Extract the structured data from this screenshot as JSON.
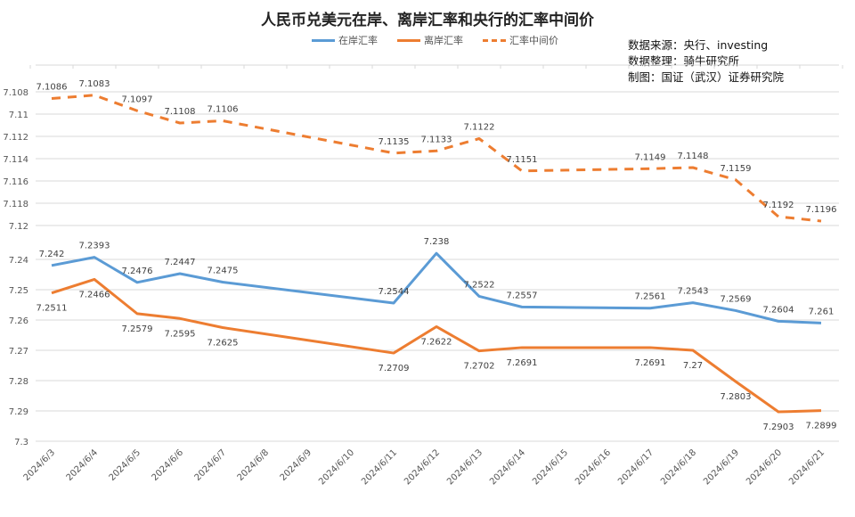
{
  "chart_data": {
    "type": "line",
    "title": "人民币兑美元在岸、离岸汇率和央行的汇率中间价",
    "notes": [
      "数据来源：央行、investing",
      "数据整理：骑牛研究所",
      "制图：国证（武汉）证券研究院"
    ],
    "categories": [
      "2024/6/3",
      "2024/6/4",
      "2024/6/5",
      "2024/6/6",
      "2024/6/7",
      "2024/6/8",
      "2024/6/9",
      "2024/6/10",
      "2024/6/11",
      "2024/6/12",
      "2024/6/13",
      "2024/6/14",
      "2024/6/15",
      "2024/6/16",
      "2024/6/17",
      "2024/6/18",
      "2024/6/19",
      "2024/6/20",
      "2024/6/21"
    ],
    "axis_upper": {
      "ticks": [
        "7.108",
        "7.11",
        "7.112",
        "7.114",
        "7.116",
        "7.118",
        "7.12"
      ],
      "range": [
        7.108,
        7.12
      ],
      "inverted": true
    },
    "axis_lower": {
      "ticks": [
        "7.24",
        "7.25",
        "7.26",
        "7.27",
        "7.28",
        "7.29",
        "7.3"
      ],
      "range": [
        7.24,
        7.3
      ],
      "inverted": true
    },
    "grid": true,
    "legend_position": "top",
    "series": [
      {
        "name": "在岸汇率",
        "color": "#5b9bd5",
        "dash": false,
        "axis": "lower",
        "label_pos": "above",
        "values": [
          7.242,
          7.2393,
          7.2476,
          7.2447,
          7.2475,
          null,
          null,
          null,
          7.2544,
          7.238,
          7.2522,
          7.2557,
          null,
          null,
          7.2561,
          7.2543,
          7.2569,
          7.2604,
          7.261
        ]
      },
      {
        "name": "离岸汇率",
        "color": "#ed7d31",
        "dash": false,
        "axis": "lower",
        "label_pos": "below",
        "values": [
          7.2511,
          7.2466,
          7.2579,
          7.2595,
          7.2625,
          null,
          null,
          null,
          7.2709,
          7.2622,
          7.2702,
          7.2691,
          null,
          null,
          7.2691,
          7.27,
          7.2803,
          7.2903,
          7.2899
        ]
      },
      {
        "name": "汇率中间价",
        "color": "#ed7d31",
        "dash": true,
        "axis": "upper",
        "label_pos": "above",
        "values": [
          7.1086,
          7.1083,
          7.1097,
          7.1108,
          7.1106,
          null,
          null,
          null,
          7.1135,
          7.1133,
          7.1122,
          7.1151,
          null,
          null,
          7.1149,
          7.1148,
          7.1159,
          7.1192,
          7.1196
        ]
      }
    ]
  }
}
